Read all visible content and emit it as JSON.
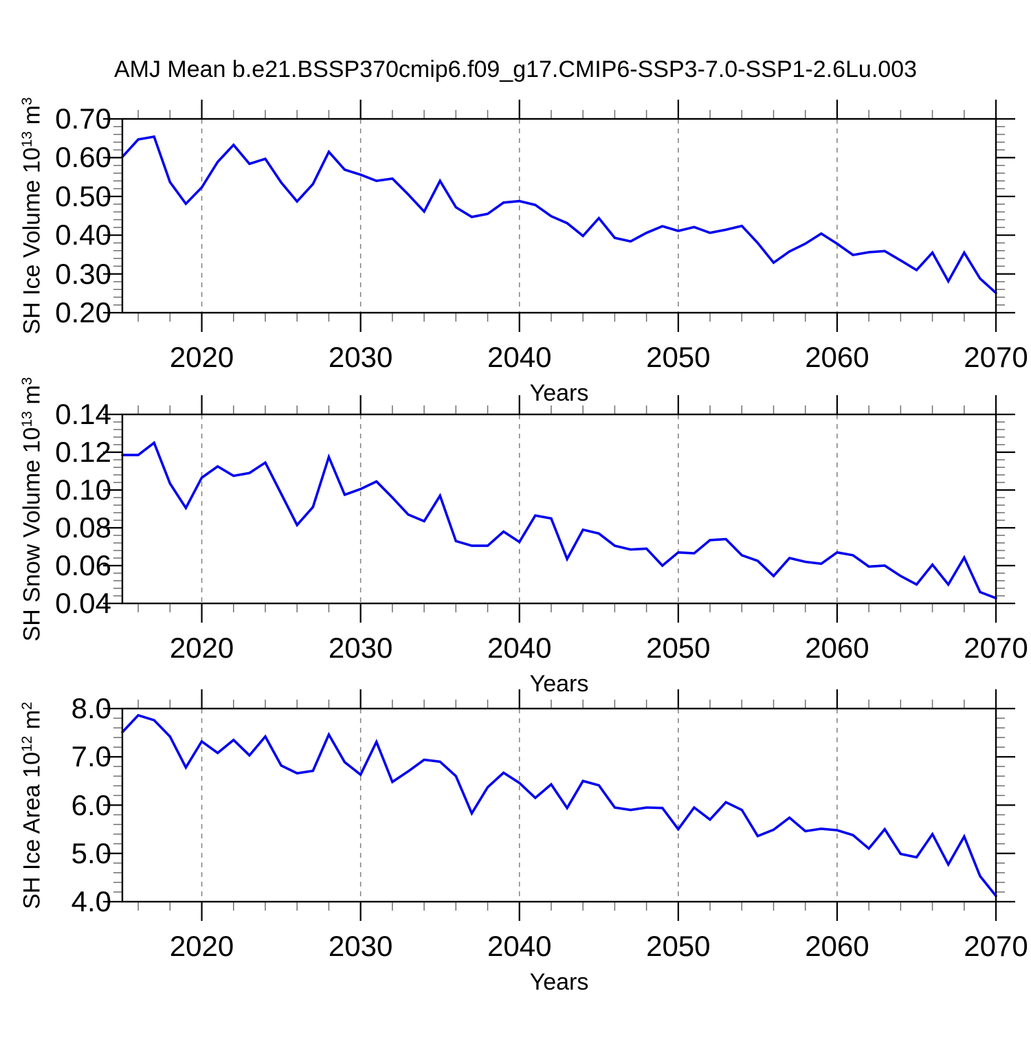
{
  "title": "AMJ Mean b.e21.BSSP370cmip6.f09_g17.CMIP6-SSP3-7.0-SSP1-2.6Lu.003",
  "colors": {
    "line": "#0000EE",
    "grid": "#7F7F7F",
    "axis": "#000000",
    "minor_tick": "#6E6E6E"
  },
  "years": [
    2015,
    2016,
    2017,
    2018,
    2019,
    2020,
    2021,
    2022,
    2023,
    2024,
    2025,
    2026,
    2027,
    2028,
    2029,
    2030,
    2031,
    2032,
    2033,
    2034,
    2035,
    2036,
    2037,
    2038,
    2039,
    2040,
    2041,
    2042,
    2043,
    2044,
    2045,
    2046,
    2047,
    2048,
    2049,
    2050,
    2051,
    2052,
    2053,
    2054,
    2055,
    2056,
    2057,
    2058,
    2059,
    2060,
    2061,
    2062,
    2063,
    2064,
    2065,
    2066,
    2067,
    2068,
    2069,
    2070
  ],
  "chart_data": [
    {
      "type": "line",
      "name": "sh-ice-volume",
      "xlabel": "Years",
      "ylabel_segments": [
        {
          "t": "SH Ice Volume 10"
        },
        {
          "t": "13",
          "sup": true
        },
        {
          "t": " m"
        },
        {
          "t": "3",
          "sup": true
        }
      ],
      "ylabel_plain": "SH Ice Volume 10^13 m^3",
      "xlim": [
        2015,
        2070
      ],
      "ylim": [
        0.2,
        0.7
      ],
      "xticks": [
        2020,
        2030,
        2040,
        2050,
        2060,
        2070
      ],
      "xtick_labels": [
        "2020",
        "2030",
        "2040",
        "2050",
        "2060",
        "2070"
      ],
      "x_minor_step": 2,
      "x_gridlines": [
        2020,
        2030,
        2040,
        2050,
        2060
      ],
      "ytick_values": [
        0.7,
        0.6,
        0.5,
        0.4,
        0.3,
        0.2
      ],
      "ytick_labels": [
        "0.70",
        "0.60",
        "0.50",
        "0.40",
        "0.30",
        "0.20"
      ],
      "y_minor_step": 0.02,
      "grid": "vertical-dashed",
      "legend": "none",
      "values": [
        0.602,
        0.647,
        0.654,
        0.537,
        0.481,
        0.523,
        0.589,
        0.633,
        0.584,
        0.597,
        0.536,
        0.487,
        0.532,
        0.615,
        0.569,
        0.556,
        0.54,
        0.546,
        0.505,
        0.461,
        0.54,
        0.472,
        0.447,
        0.455,
        0.484,
        0.488,
        0.478,
        0.449,
        0.431,
        0.398,
        0.444,
        0.393,
        0.384,
        0.406,
        0.423,
        0.411,
        0.421,
        0.406,
        0.414,
        0.424,
        0.38,
        0.329,
        0.358,
        0.378,
        0.404,
        0.378,
        0.349,
        0.356,
        0.359,
        0.335,
        0.31,
        0.355,
        0.281,
        0.355,
        0.288,
        0.251
      ]
    },
    {
      "type": "line",
      "name": "sh-snow-volume",
      "xlabel": "Years",
      "ylabel_segments": [
        {
          "t": "SH Snow Volume 10"
        },
        {
          "t": "13",
          "sup": true
        },
        {
          "t": " m"
        },
        {
          "t": "3",
          "sup": true
        }
      ],
      "ylabel_plain": "SH Snow Volume 10^13 m^3",
      "xlim": [
        2015,
        2070
      ],
      "ylim": [
        0.04,
        0.14
      ],
      "xticks": [
        2020,
        2030,
        2040,
        2050,
        2060,
        2070
      ],
      "xtick_labels": [
        "2020",
        "2030",
        "2040",
        "2050",
        "2060",
        "2070"
      ],
      "x_minor_step": 2,
      "x_gridlines": [
        2020,
        2030,
        2040,
        2050,
        2060
      ],
      "ytick_values": [
        0.14,
        0.12,
        0.1,
        0.08,
        0.06,
        0.04
      ],
      "ytick_labels": [
        "0.14",
        "0.12",
        "0.10",
        "0.08",
        "0.06",
        "0.04"
      ],
      "y_minor_step": 0.004,
      "grid": "vertical-dashed",
      "legend": "none",
      "values": [
        0.1185,
        0.1185,
        0.125,
        0.1035,
        0.0905,
        0.1065,
        0.1125,
        0.1075,
        0.109,
        0.1145,
        0.098,
        0.0815,
        0.091,
        0.1175,
        0.0975,
        0.1005,
        0.1045,
        0.096,
        0.087,
        0.0835,
        0.097,
        0.073,
        0.0705,
        0.0705,
        0.078,
        0.0725,
        0.0865,
        0.085,
        0.0635,
        0.079,
        0.077,
        0.0705,
        0.0685,
        0.069,
        0.06,
        0.067,
        0.0665,
        0.0735,
        0.074,
        0.0655,
        0.0625,
        0.0545,
        0.064,
        0.062,
        0.061,
        0.067,
        0.0655,
        0.0595,
        0.06,
        0.0545,
        0.05,
        0.0605,
        0.05,
        0.0643,
        0.046,
        0.0428
      ]
    },
    {
      "type": "line",
      "name": "sh-ice-area",
      "xlabel": "Years",
      "ylabel_segments": [
        {
          "t": "SH Ice Area 10"
        },
        {
          "t": "12",
          "sup": true
        },
        {
          "t": " m"
        },
        {
          "t": "2",
          "sup": true
        }
      ],
      "ylabel_plain": "SH Ice Area 10^12 m^2",
      "xlim": [
        2015,
        2070
      ],
      "ylim": [
        4.0,
        8.0
      ],
      "xticks": [
        2020,
        2030,
        2040,
        2050,
        2060,
        2070
      ],
      "xtick_labels": [
        "2020",
        "2030",
        "2040",
        "2050",
        "2060",
        "2070"
      ],
      "x_minor_step": 2,
      "x_gridlines": [
        2020,
        2030,
        2040,
        2050,
        2060
      ],
      "ytick_values": [
        8.0,
        7.0,
        6.0,
        5.0,
        4.0
      ],
      "ytick_labels": [
        "8.0",
        "7.0",
        "6.0",
        "5.0",
        "4.0"
      ],
      "y_minor_step": 0.2,
      "grid": "vertical-dashed",
      "legend": "none",
      "values": [
        7.51,
        7.86,
        7.76,
        7.42,
        6.78,
        7.32,
        7.08,
        7.35,
        7.03,
        7.42,
        6.82,
        6.66,
        6.71,
        7.46,
        6.89,
        6.63,
        7.31,
        6.48,
        6.7,
        6.94,
        6.9,
        6.6,
        5.83,
        6.37,
        6.67,
        6.46,
        6.15,
        6.43,
        5.94,
        6.5,
        6.41,
        5.95,
        5.9,
        5.95,
        5.94,
        5.5,
        5.95,
        5.7,
        6.06,
        5.9,
        5.36,
        5.49,
        5.74,
        5.46,
        5.51,
        5.48,
        5.38,
        5.1,
        5.5,
        4.99,
        4.92,
        5.4,
        4.77,
        5.35,
        4.53,
        4.12
      ]
    }
  ]
}
